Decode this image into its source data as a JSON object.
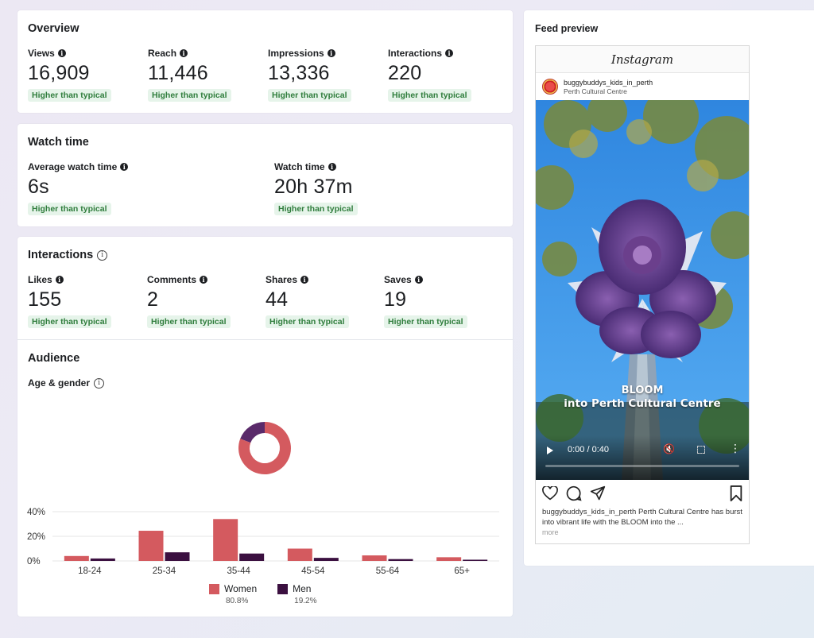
{
  "overview": {
    "title": "Overview",
    "metrics": [
      {
        "label": "Views",
        "value": "16,909",
        "badge": "Higher than typical"
      },
      {
        "label": "Reach",
        "value": "11,446",
        "badge": "Higher than typical"
      },
      {
        "label": "Impressions",
        "value": "13,336",
        "badge": "Higher than typical"
      },
      {
        "label": "Interactions",
        "value": "220",
        "badge": "Higher than typical"
      }
    ]
  },
  "watch_time": {
    "title": "Watch time",
    "metrics": [
      {
        "label": "Average watch time",
        "value": "6s",
        "badge": "Higher than typical"
      },
      {
        "label": "Watch time",
        "value": "20h 37m",
        "badge": "Higher than typical"
      }
    ]
  },
  "interactions": {
    "title": "Interactions",
    "metrics": [
      {
        "label": "Likes",
        "value": "155",
        "badge": "Higher than typical"
      },
      {
        "label": "Comments",
        "value": "2",
        "badge": "Higher than typical"
      },
      {
        "label": "Shares",
        "value": "44",
        "badge": "Higher than typical"
      },
      {
        "label": "Saves",
        "value": "19",
        "badge": "Higher than typical"
      }
    ]
  },
  "audience": {
    "title": "Audience",
    "subtitle": "Age & gender",
    "legend": [
      {
        "name": "Women",
        "percent": "80.8%",
        "color": "#d45a5f"
      },
      {
        "name": "Men",
        "percent": "19.2%",
        "color": "#3b1040"
      }
    ]
  },
  "chart_data": {
    "type": "bar",
    "categories": [
      "18-24",
      "25-34",
      "35-44",
      "45-54",
      "55-64",
      "65+"
    ],
    "series": [
      {
        "name": "Women",
        "values": [
          4,
          24.5,
          34,
          10,
          4.5,
          3
        ],
        "color": "#d45a5f"
      },
      {
        "name": "Men",
        "values": [
          2,
          7,
          6,
          2.5,
          1.5,
          1
        ],
        "color": "#3b1040"
      }
    ],
    "ylim": [
      0,
      40
    ],
    "yticks": [
      0,
      20,
      40
    ],
    "ytick_labels": [
      "0%",
      "20%",
      "40%"
    ],
    "donut": {
      "values": [
        80.8,
        19.2
      ],
      "colors": [
        "#d45a5f",
        "#5a2a6a"
      ]
    },
    "grid": true
  },
  "feed": {
    "title": "Feed preview",
    "app_name": "Instagram",
    "username": "buggybuddys_kids_in_perth",
    "location": "Perth Cultural Centre",
    "overlay_line1": "BLOOM",
    "overlay_line2": "into Perth Cultural Centre",
    "time": "0:00 / 0:40",
    "progress": 0.0,
    "caption_user": "buggybuddys_kids_in_perth",
    "caption_text": " Perth Cultural Centre has burst into vibrant life with the BLOOM into the ...",
    "more": "more"
  }
}
